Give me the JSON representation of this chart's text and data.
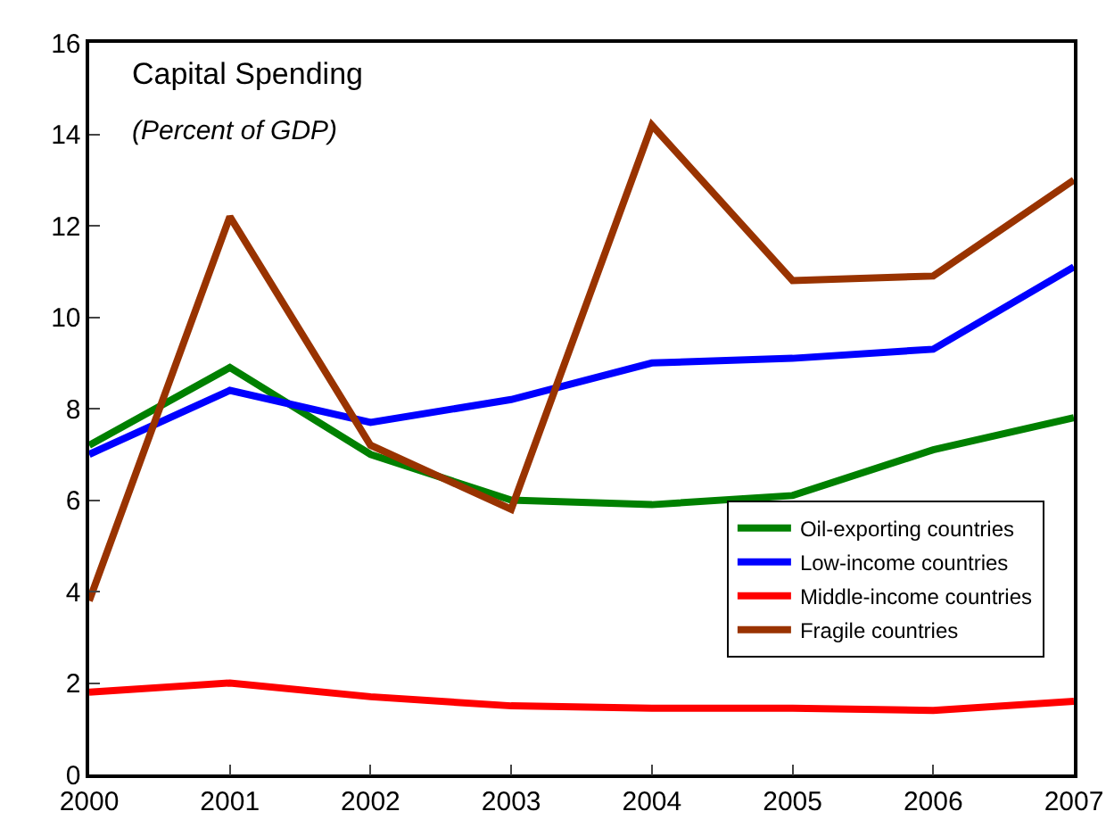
{
  "chart_data": {
    "type": "line",
    "title": "Capital Spending",
    "subtitle": "(Percent of GDP)",
    "x": [
      2000,
      2001,
      2002,
      2003,
      2004,
      2005,
      2006,
      2007
    ],
    "series": [
      {
        "name": "Oil-exporting countries",
        "color": "#008000",
        "values": [
          7.2,
          8.9,
          7.0,
          6.0,
          5.9,
          6.1,
          7.1,
          7.8
        ]
      },
      {
        "name": "Low-income countries",
        "color": "#0000ff",
        "values": [
          7.0,
          8.4,
          7.7,
          8.2,
          9.0,
          9.1,
          9.3,
          11.1
        ]
      },
      {
        "name": "Middle-income countries",
        "color": "#ff0000",
        "values": [
          1.8,
          2.0,
          1.7,
          1.5,
          1.45,
          1.45,
          1.4,
          1.6
        ]
      },
      {
        "name": "Fragile countries",
        "color": "#993300",
        "values": [
          3.8,
          12.2,
          7.2,
          5.8,
          14.2,
          10.8,
          10.9,
          13.0
        ]
      }
    ],
    "xlim": [
      2000,
      2007
    ],
    "xticks": [
      2000,
      2001,
      2002,
      2003,
      2004,
      2005,
      2006,
      2007
    ],
    "ylim": [
      0,
      16
    ],
    "yticks": [
      0,
      2,
      4,
      6,
      8,
      10,
      12,
      14,
      16
    ],
    "grid": false,
    "legend": "bottom right",
    "marker": "none",
    "line_style": "solid"
  }
}
